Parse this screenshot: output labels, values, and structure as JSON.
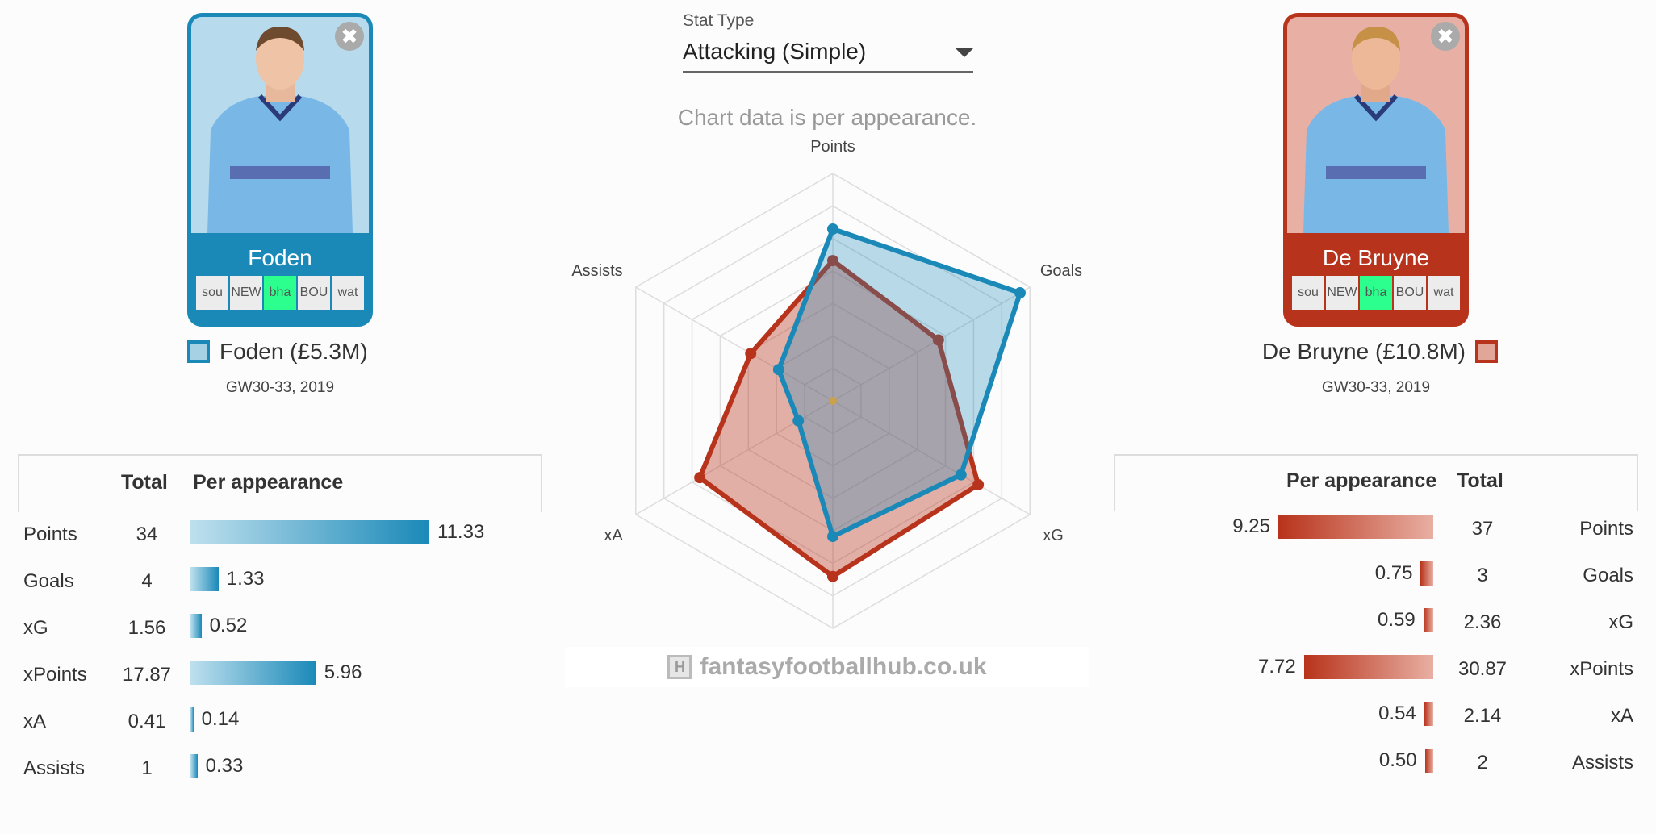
{
  "left_player": {
    "name": "Foden",
    "label": "Foden (£5.3M)",
    "gameweeks": "GW30-33, 2019",
    "color": "#1a89b8",
    "fixtures": [
      "sou",
      "NEW",
      "bha",
      "BOU",
      "wat"
    ],
    "close_icon": "close-icon"
  },
  "right_player": {
    "name": "De Bruyne",
    "label": "De Bruyne (£10.8M)",
    "gameweeks": "GW30-33, 2019",
    "color": "#b8331b",
    "fixtures": [
      "sou",
      "NEW",
      "bha",
      "BOU",
      "wat"
    ],
    "close_icon": "close-icon"
  },
  "stat_type": {
    "label": "Stat Type",
    "value": "Attacking (Simple)"
  },
  "chart_note": "Chart data is per appearance.",
  "watermark": "fantasyfootballhub.co.uk",
  "table_headers": {
    "total": "Total",
    "per_appearance": "Per appearance"
  },
  "left_stats": [
    {
      "name": "Points",
      "total": "34",
      "per": "11.33",
      "per_value": 11.33
    },
    {
      "name": "Goals",
      "total": "4",
      "per": "1.33",
      "per_value": 1.33
    },
    {
      "name": "xG",
      "total": "1.56",
      "per": "0.52",
      "per_value": 0.52
    },
    {
      "name": "xPoints",
      "total": "17.87",
      "per": "5.96",
      "per_value": 5.96
    },
    {
      "name": "xA",
      "total": "0.41",
      "per": "0.14",
      "per_value": 0.14
    },
    {
      "name": "Assists",
      "total": "1",
      "per": "0.33",
      "per_value": 0.33
    }
  ],
  "right_stats": [
    {
      "name": "Points",
      "total": "37",
      "per": "9.25",
      "per_value": 9.25
    },
    {
      "name": "Goals",
      "total": "3",
      "per": "0.75",
      "per_value": 0.75
    },
    {
      "name": "xG",
      "total": "2.36",
      "per": "0.59",
      "per_value": 0.59
    },
    {
      "name": "xPoints",
      "total": "30.87",
      "per": "7.72",
      "per_value": 7.72
    },
    {
      "name": "xA",
      "total": "2.14",
      "per": "0.54",
      "per_value": 0.54
    },
    {
      "name": "Assists",
      "total": "2",
      "per": "0.50",
      "per_value": 0.5
    }
  ],
  "chart_data": {
    "type": "radar",
    "axes": [
      "Points",
      "Goals",
      "xG",
      "xPoints",
      "xA",
      "Assists"
    ],
    "max": [
      15,
      1.4,
      0.8,
      10,
      0.8,
      1.2
    ],
    "series": [
      {
        "name": "Foden (£5.3M)",
        "color": "#1a89b8",
        "fill": "rgba(26,137,184,0.30)",
        "values": [
          11.33,
          1.33,
          0.52,
          5.96,
          0.14,
          0.33
        ]
      },
      {
        "name": "De Bruyne (£10.8M)",
        "color": "#b8331b",
        "fill": "rgba(184,51,27,0.38)",
        "values": [
          9.25,
          0.75,
          0.59,
          7.72,
          0.54,
          0.5
        ]
      }
    ],
    "rings": 7,
    "grid": true
  }
}
